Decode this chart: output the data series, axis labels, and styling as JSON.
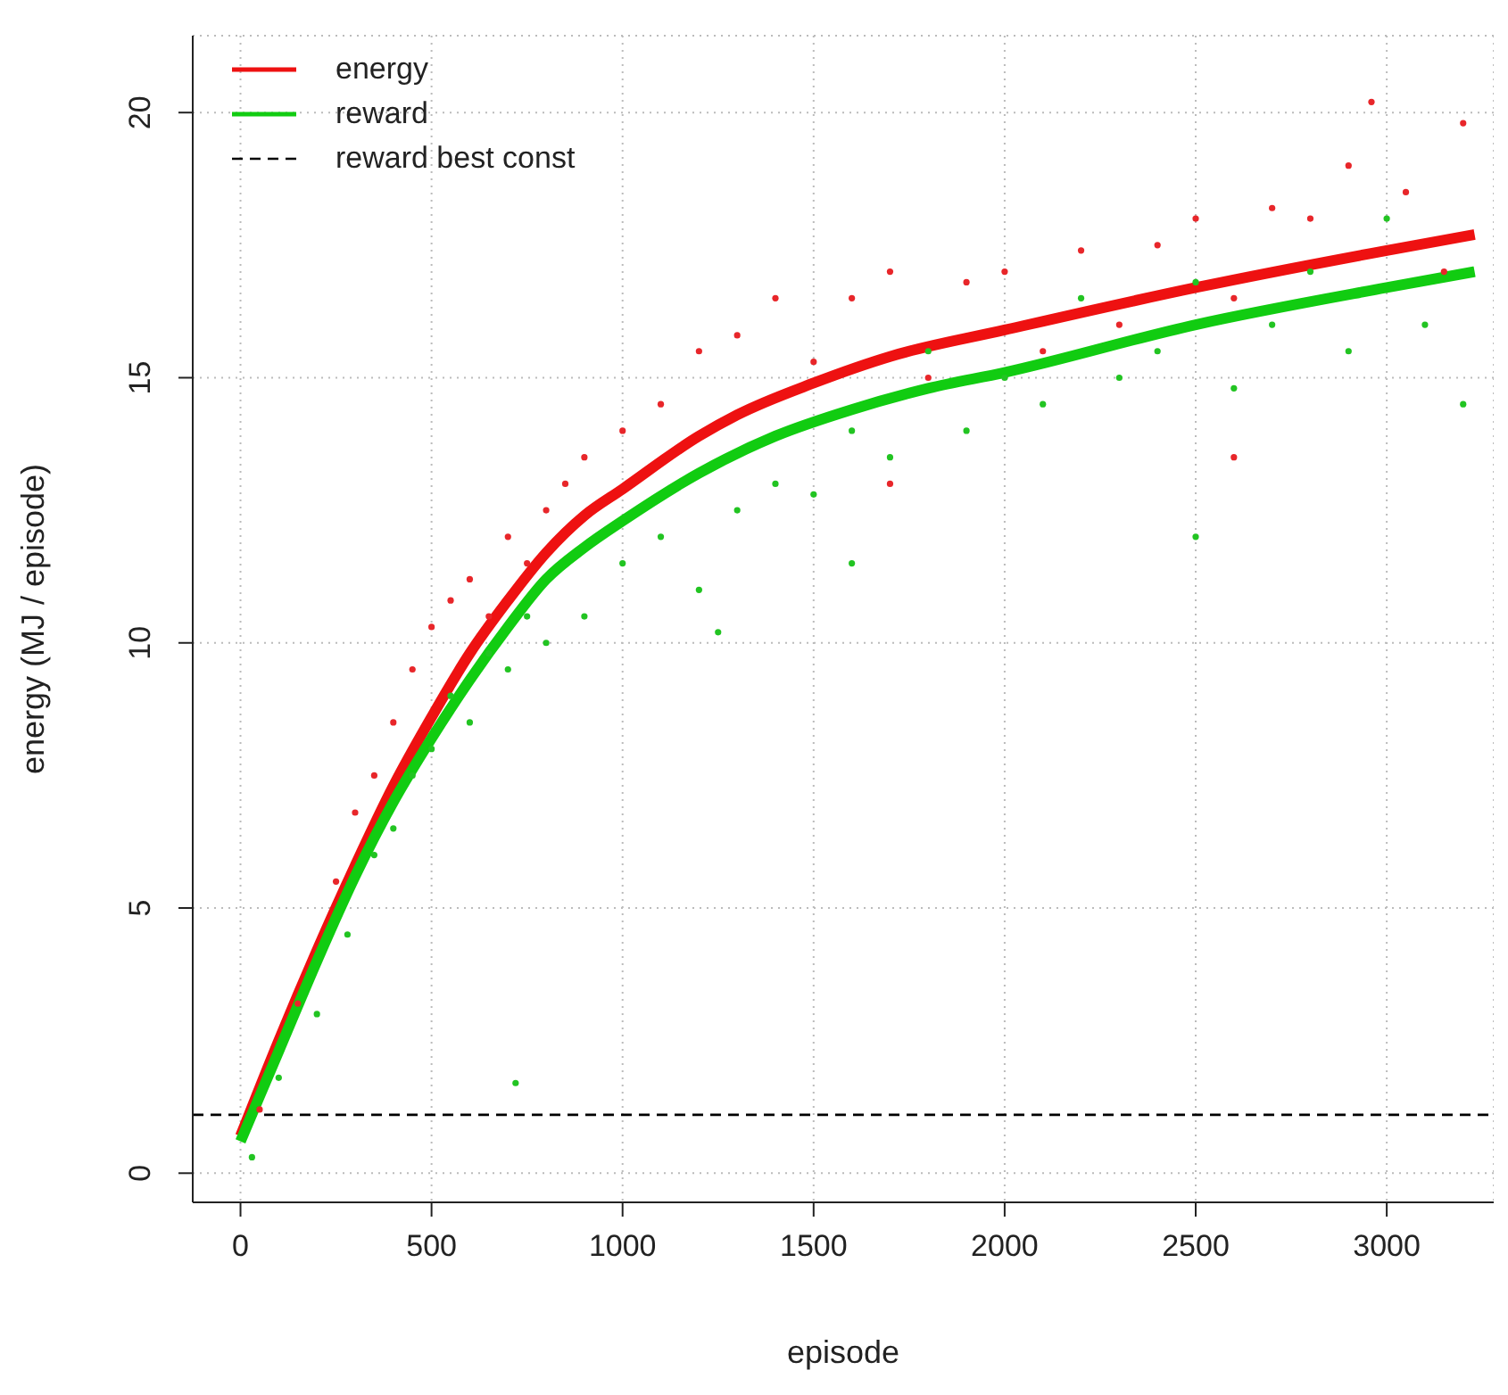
{
  "chart_data": {
    "type": "line",
    "xlabel": "episode",
    "ylabel": "energy (MJ / episode)",
    "xlim": [
      -125,
      3280
    ],
    "ylim": [
      -0.55,
      21.45
    ],
    "xticks": [
      0,
      500,
      1000,
      1500,
      2000,
      2500,
      3000
    ],
    "yticks": [
      0,
      5,
      10,
      15,
      20
    ],
    "grid": true,
    "legend": "top left",
    "line_style": "solid",
    "series": [
      {
        "type": "scatter",
        "color": "#e8262a",
        "x": [
          50,
          150,
          250,
          300,
          350,
          400,
          450,
          500,
          550,
          600,
          650,
          700,
          750,
          800,
          850,
          900,
          1000,
          1100,
          1200,
          1300,
          1400,
          1500,
          1600,
          1700,
          1800,
          1900,
          2000,
          2100,
          2200,
          2300,
          2400,
          2500,
          2600,
          2700,
          2800,
          2900,
          2960,
          3050,
          3150,
          3200,
          1700,
          2600
        ],
        "values": [
          1.2,
          3.2,
          5.5,
          6.8,
          7.5,
          8.5,
          9.5,
          10.3,
          10.8,
          11.2,
          10.5,
          12.0,
          11.5,
          12.5,
          13.0,
          13.5,
          14.0,
          14.5,
          15.5,
          15.8,
          16.5,
          15.3,
          16.5,
          17.0,
          15.0,
          16.8,
          17.0,
          15.5,
          17.4,
          16.0,
          17.5,
          18.0,
          16.5,
          18.2,
          18.0,
          19.0,
          20.2,
          18.5,
          17.0,
          19.8,
          13.0,
          13.5
        ]
      },
      {
        "type": "scatter",
        "color": "#22c422",
        "x": [
          30,
          100,
          200,
          280,
          350,
          400,
          450,
          500,
          550,
          600,
          650,
          700,
          720,
          750,
          800,
          900,
          1000,
          1100,
          1200,
          1250,
          1300,
          1400,
          1500,
          1600,
          1700,
          1800,
          1900,
          2000,
          2100,
          2200,
          2300,
          2400,
          2500,
          2600,
          2700,
          2800,
          2900,
          3000,
          3100,
          3200,
          1600,
          2500
        ],
        "values": [
          0.3,
          1.8,
          3.0,
          4.5,
          6.0,
          6.5,
          7.5,
          8.0,
          9.0,
          8.5,
          9.8,
          9.5,
          1.7,
          10.5,
          10.0,
          10.5,
          11.5,
          12.0,
          11.0,
          10.2,
          12.5,
          13.0,
          12.8,
          14.0,
          13.5,
          15.5,
          14.0,
          15.0,
          14.5,
          16.5,
          15.0,
          15.5,
          16.8,
          14.8,
          16.0,
          17.0,
          15.5,
          18.0,
          16.0,
          14.5,
          11.5,
          12.0
        ]
      },
      {
        "name": "energy",
        "color": "#ee1111",
        "x": [
          0,
          100,
          200,
          300,
          400,
          500,
          600,
          700,
          800,
          900,
          1000,
          1200,
          1300,
          1500,
          1700,
          2000,
          2500,
          3000,
          3230
        ],
        "values": [
          0.7,
          2.5,
          4.2,
          5.8,
          7.3,
          8.6,
          9.8,
          10.8,
          11.7,
          12.4,
          12.9,
          13.9,
          14.3,
          14.9,
          15.4,
          15.9,
          16.7,
          17.4,
          17.7
        ]
      },
      {
        "name": "reward",
        "color": "#11cc11",
        "x": [
          0,
          100,
          200,
          300,
          400,
          500,
          600,
          700,
          800,
          900,
          1000,
          1200,
          1400,
          1600,
          1800,
          2000,
          2500,
          3000,
          3230
        ],
        "values": [
          0.6,
          2.3,
          4.0,
          5.6,
          7.0,
          8.2,
          9.3,
          10.3,
          11.2,
          11.8,
          12.3,
          13.2,
          13.9,
          14.4,
          14.8,
          15.1,
          16.0,
          16.7,
          17.0
        ]
      }
    ],
    "ref_lines": [
      {
        "axis": "y",
        "value": 1.1,
        "label": "reward best const",
        "color": "#000000",
        "line_style": "dashed"
      }
    ]
  }
}
